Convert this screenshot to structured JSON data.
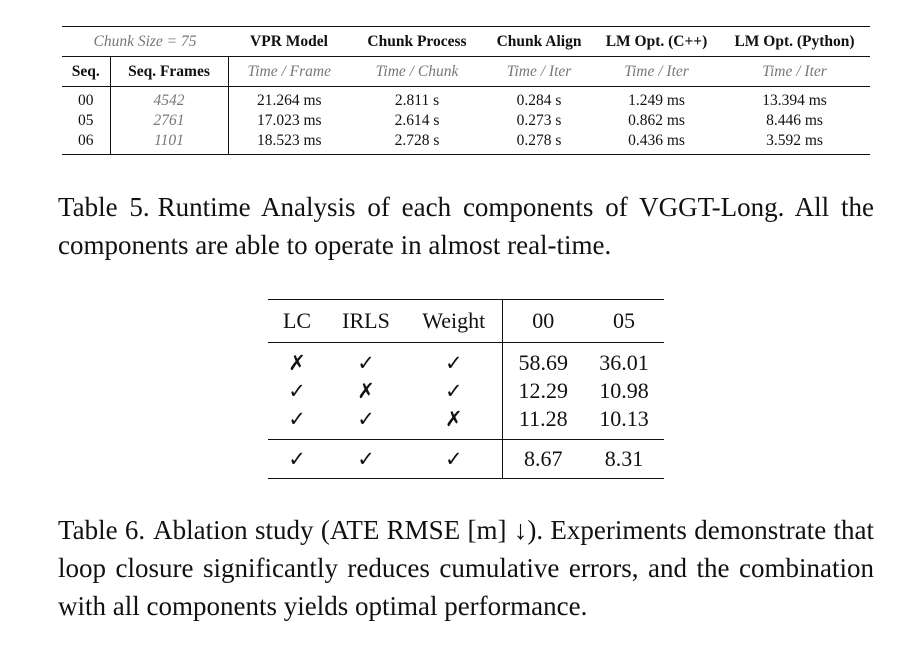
{
  "table5": {
    "header1": [
      "Chunk Size = 75",
      "VPR Model",
      "Chunk Process",
      "Chunk Align",
      "LM Opt. (C++)",
      "LM Opt. (Python)"
    ],
    "header2": [
      "Seq.",
      "Seq. Frames",
      "Time / Frame",
      "Time / Chunk",
      "Time / Iter",
      "Time / Iter",
      "Time / Iter"
    ],
    "rows": [
      [
        "00",
        "4542",
        "21.264 ms",
        "2.811 s",
        "0.284 s",
        "1.249 ms",
        "13.394 ms"
      ],
      [
        "05",
        "2761",
        "17.023 ms",
        "2.614 s",
        "0.273 s",
        "0.862 ms",
        "8.446 ms"
      ],
      [
        "06",
        "1101",
        "18.523 ms",
        "2.728 s",
        "0.278 s",
        "0.436 ms",
        "3.592 ms"
      ]
    ]
  },
  "caption5": {
    "label": "Table 5.",
    "text": "Runtime Analysis of each components of VGGT-Long. All the components are able to operate in almost real-time."
  },
  "table6": {
    "header": [
      "LC",
      "IRLS",
      "Weight",
      "00",
      "05"
    ],
    "rows": [
      [
        "✗",
        "✓",
        "✓",
        "58.69",
        "36.01"
      ],
      [
        "✓",
        "✗",
        "✓",
        "12.29",
        "10.98"
      ],
      [
        "✓",
        "✓",
        "✗",
        "11.28",
        "10.13"
      ],
      [
        "✓",
        "✓",
        "✓",
        "8.67",
        "8.31"
      ]
    ]
  },
  "caption6": {
    "label": "Table 6.",
    "text": "Ablation study (ATE RMSE [m] ↓). Experiments demonstrate that loop closure significantly reduces cumulative errors, and the combination with all components yields optimal performance."
  }
}
